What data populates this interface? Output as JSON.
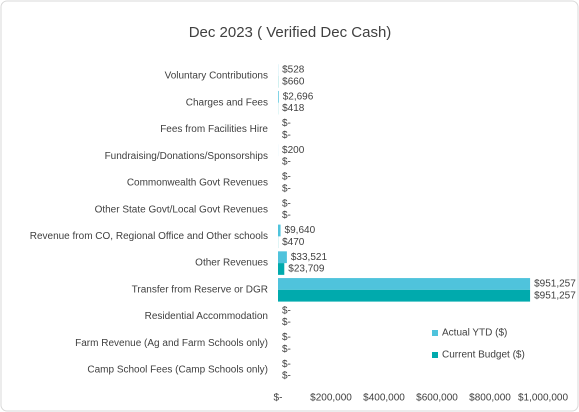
{
  "chart_data": {
    "type": "hbar",
    "title": "Dec 2023 ( Verified Dec Cash)",
    "categories": [
      "Voluntary Contributions",
      "Charges and Fees",
      "Fees from Facilities Hire",
      "Fundraising/Donations/Sponsorships",
      "Commonwealth Govt Revenues",
      "Other State Govt/Local Govt Revenues",
      "Revenue from CO, Regional Office and Other schools",
      "Other Revenues",
      "Transfer from Reserve or DGR",
      "Residential Accommodation",
      "Farm Revenue (Ag and Farm Schools only)",
      "Camp School Fees (Camp Schools only)"
    ],
    "series": [
      {
        "name": "Actual YTD ($)",
        "color": "#4fc3dc",
        "values": [
          528,
          2696,
          0,
          200,
          0,
          0,
          9640,
          33521,
          951257,
          0,
          0,
          0
        ],
        "value_labels": [
          "$528",
          "$2,696",
          "$-",
          "$200",
          "$-",
          "$-",
          "$9,640",
          "$33,521",
          "$951,257",
          "$-",
          "$-",
          "$-"
        ]
      },
      {
        "name": "Current Budget ($)",
        "color": "#00aaad",
        "values": [
          660,
          418,
          0,
          0,
          0,
          0,
          470,
          23709,
          951257,
          0,
          0,
          0
        ],
        "value_labels": [
          "$660",
          "$418",
          "$-",
          "$-",
          "$-",
          "$-",
          "$470",
          "$23,709",
          "$951,257",
          "$-",
          "$-",
          "$-"
        ]
      }
    ],
    "xlim": [
      0,
      1000000
    ],
    "xticks": [
      {
        "value": 0,
        "label": "$-"
      },
      {
        "value": 200000,
        "label": "$200,000"
      },
      {
        "value": 400000,
        "label": "$400,000"
      },
      {
        "value": 600000,
        "label": "$600,000"
      },
      {
        "value": 800000,
        "label": "$800,000"
      },
      {
        "value": 1000000,
        "label": "$1,000,000"
      }
    ],
    "legend": "right"
  }
}
